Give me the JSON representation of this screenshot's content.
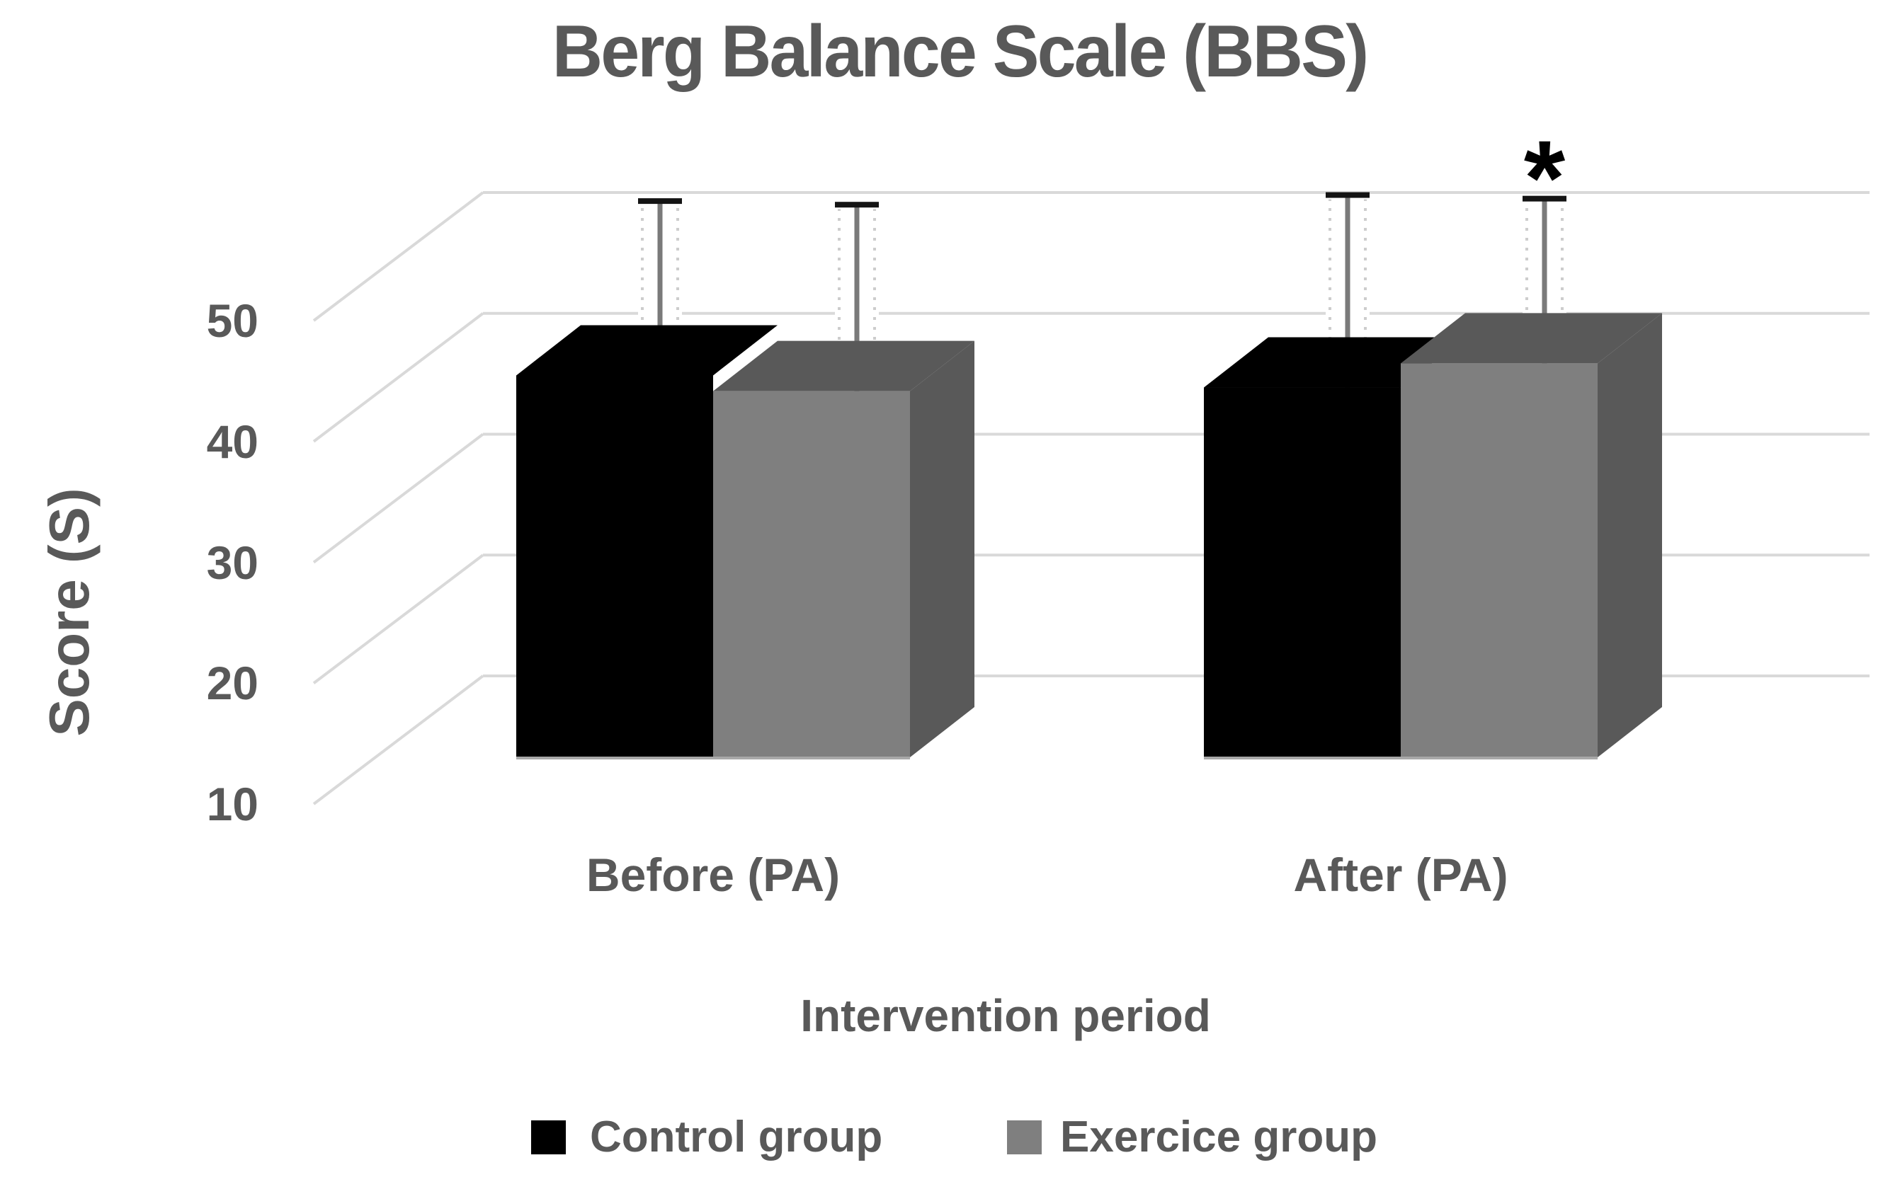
{
  "page": {
    "background": "#ffffff"
  },
  "chart_data": {
    "type": "bar",
    "variant": "3d-clustered-column",
    "title": "Berg Balance Scale (BBS)",
    "ylabel": "Score (S)",
    "xlabel": "Intervention period",
    "categories": [
      "Before (PA)",
      "After (PA)"
    ],
    "series": [
      {
        "name": "Control group",
        "color": "#000000",
        "values": [
          44.0,
          43.0
        ],
        "errors_plus_sd": [
          11.5,
          13.0
        ]
      },
      {
        "name": "Exercice group",
        "color": "#7F7F7F",
        "values": [
          42.7,
          45.0
        ],
        "errors_plus_sd": [
          12.5,
          10.7
        ]
      }
    ],
    "yticks": [
      50,
      40,
      30,
      20,
      10
    ],
    "value_axis_range_shown": [
      10,
      50
    ],
    "gridlines": true,
    "legend_position": "bottom",
    "error_bars": "plus one SD, capped",
    "significance_marker": {
      "symbol": "*",
      "category": "After (PA)",
      "series": "Exercice group"
    },
    "colors": {
      "control": "#000000",
      "exercice_front": "#7F7F7F",
      "exercice_shade": "#595959",
      "text": "#595959",
      "gridline": "#D9D9D9",
      "error_line": "#7A7A7A",
      "error_cap": "#141414",
      "error_dots": "#CDCDCD",
      "floor_edge": "#A8A8A8"
    }
  }
}
